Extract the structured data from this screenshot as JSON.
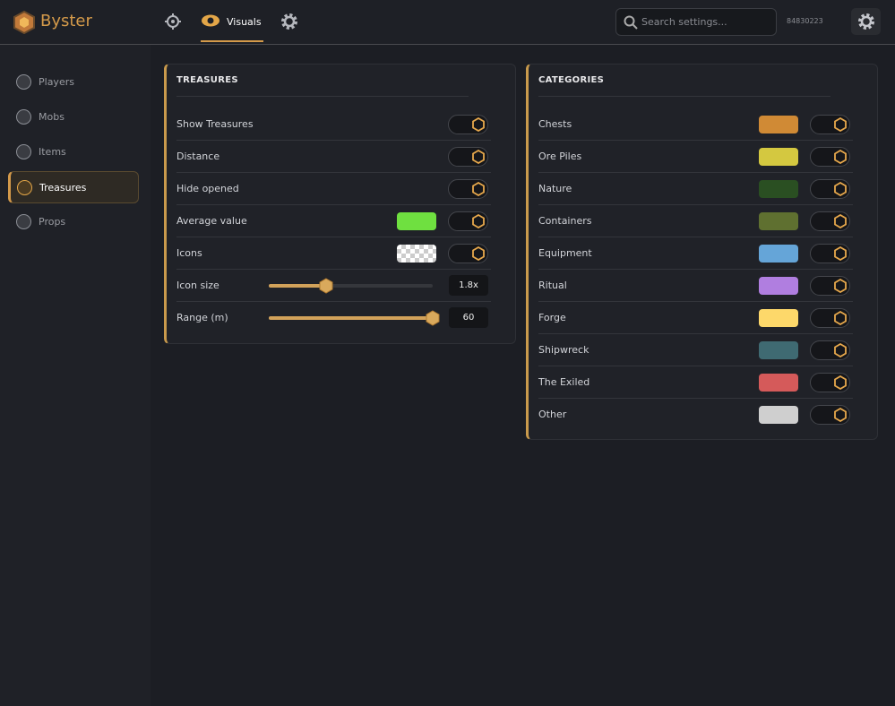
{
  "app": {
    "name": "Byster"
  },
  "nav": {
    "tabs": [
      "Visuals"
    ]
  },
  "search": {
    "placeholder": "Search settings..."
  },
  "user_id": "84830223",
  "sidebar": {
    "items": [
      "Players",
      "Mobs",
      "Items",
      "Treasures",
      "Props"
    ],
    "active": 3
  },
  "treasures": {
    "title": "TREASURES",
    "rows": [
      {
        "label": "Show Treasures",
        "control": "toggle"
      },
      {
        "label": "Distance",
        "control": "toggle"
      },
      {
        "label": "Hide opened",
        "control": "toggle"
      },
      {
        "label": "Average value",
        "control": "toggle",
        "color": "#6fe040"
      },
      {
        "label": "Icons",
        "control": "toggle",
        "pattern": "checkerboard"
      },
      {
        "label": "Icon size",
        "control": "slider",
        "value_label": "1.8x"
      },
      {
        "label": "Range (m)",
        "control": "slider",
        "value_label": "60"
      }
    ]
  },
  "categories": {
    "title": "CATEGORIES",
    "rows": [
      {
        "label": "Chests",
        "color": "#d08a35"
      },
      {
        "label": "Ore Piles",
        "color": "#d4c840"
      },
      {
        "label": "Nature",
        "color": "#2a4f22"
      },
      {
        "label": "Containers",
        "color": "#5f7030"
      },
      {
        "label": "Equipment",
        "color": "#65a5d8"
      },
      {
        "label": "Ritual",
        "color": "#b07ee0"
      },
      {
        "label": "Forge",
        "color": "#fdd86a"
      },
      {
        "label": "Shipwreck",
        "color": "#3f6a72"
      },
      {
        "label": "The Exiled",
        "color": "#d55a5a"
      },
      {
        "label": "Other",
        "color": "#cfcfcf"
      }
    ]
  }
}
